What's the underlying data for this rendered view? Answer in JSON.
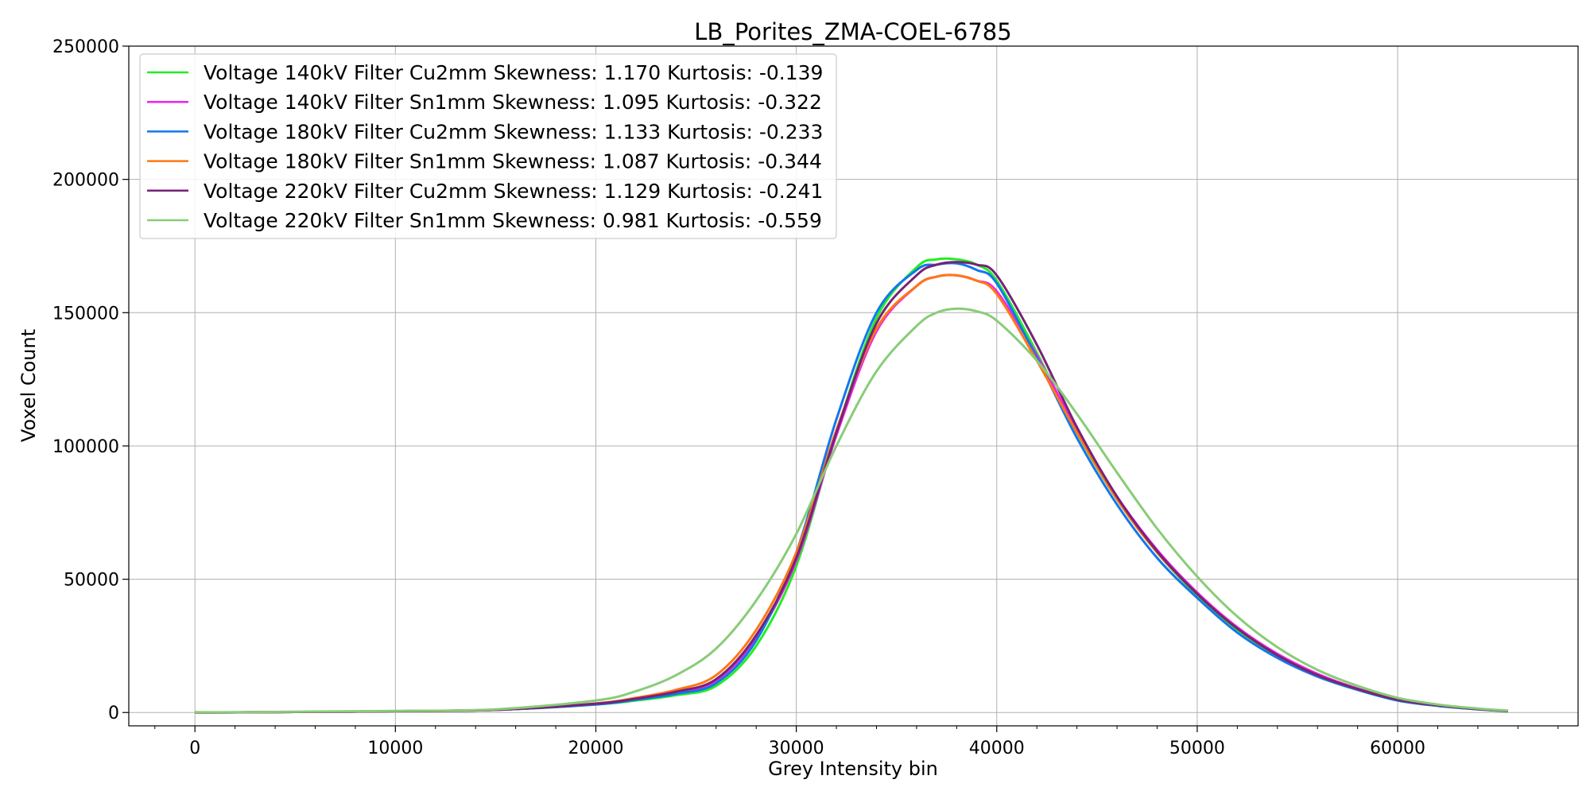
{
  "chart_data": {
    "type": "line",
    "title": "LB_Porites_ZMA-COEL-6785",
    "xlabel": "Grey Intensity bin",
    "ylabel": "Voxel Count",
    "xlim": [
      -3300,
      69000
    ],
    "ylim": [
      -5000,
      250000
    ],
    "x_ticks": [
      "0",
      "10000",
      "20000",
      "30000",
      "40000",
      "50000",
      "60000"
    ],
    "y_ticks": [
      "0",
      "50000",
      "100000",
      "150000",
      "200000",
      "250000"
    ],
    "grid": true,
    "legend_position": "top-left",
    "x": [
      0,
      5000,
      10000,
      15000,
      20000,
      22000,
      24000,
      26000,
      28000,
      30000,
      32000,
      34000,
      36000,
      37000,
      38000,
      39000,
      40000,
      42000,
      44000,
      46000,
      48000,
      50000,
      52000,
      54000,
      56000,
      58000,
      60000,
      62000,
      64000,
      65500
    ],
    "series": [
      {
        "name": "Voltage 140kV Filter Cu2mm Skewness: 1.170 Kurtosis: -0.139",
        "color": "#22ee22",
        "values": [
          0,
          200,
          500,
          1000,
          3000,
          4500,
          6500,
          10000,
          25000,
          55000,
          105000,
          148000,
          167000,
          170000,
          170000,
          168000,
          162000,
          135000,
          105000,
          80000,
          60000,
          44000,
          31000,
          21000,
          13500,
          8500,
          4500,
          2500,
          1200,
          500
        ]
      },
      {
        "name": "Voltage 140kV Filter Sn1mm Skewness: 1.095 Kurtosis: -0.322",
        "color": "#ee22ee",
        "values": [
          0,
          200,
          500,
          1000,
          3200,
          5000,
          7500,
          12000,
          28000,
          57000,
          104000,
          143000,
          160000,
          163500,
          164000,
          162000,
          158000,
          134000,
          106000,
          81000,
          61000,
          45000,
          32000,
          22000,
          14500,
          9000,
          5000,
          2800,
          1300,
          600
        ]
      },
      {
        "name": "Voltage 180kV Filter Cu2mm Skewness: 1.133 Kurtosis: -0.233",
        "color": "#1177ee",
        "values": [
          0,
          200,
          500,
          1000,
          3000,
          4800,
          7000,
          11000,
          27000,
          60000,
          110000,
          150000,
          166000,
          168000,
          168500,
          166000,
          161000,
          133000,
          103000,
          78000,
          58000,
          43000,
          30000,
          20500,
          13500,
          8500,
          4500,
          2500,
          1200,
          500
        ]
      },
      {
        "name": "Voltage 180kV Filter Sn1mm Skewness: 1.087 Kurtosis: -0.344",
        "color": "#ff7711",
        "values": [
          0,
          200,
          500,
          1000,
          3400,
          5500,
          8500,
          14000,
          31000,
          60000,
          106000,
          144000,
          160000,
          163500,
          164000,
          162000,
          157000,
          132000,
          105000,
          80000,
          60000,
          44500,
          31500,
          21500,
          14000,
          8800,
          4800,
          2700,
          1300,
          600
        ]
      },
      {
        "name": "Voltage 220kV Filter Cu2mm Skewness: 1.129 Kurtosis: -0.241",
        "color": "#772277",
        "values": [
          0,
          200,
          500,
          1000,
          3300,
          5200,
          7800,
          12500,
          29000,
          58000,
          105000,
          146000,
          164000,
          168000,
          169000,
          168000,
          164000,
          138000,
          107000,
          81000,
          60500,
          44500,
          31500,
          21500,
          14000,
          8800,
          4800,
          2700,
          1300,
          600
        ]
      },
      {
        "name": "Voltage 220kV Filter Sn1mm Skewness: 0.981 Kurtosis: -0.559",
        "color": "#88cc77",
        "values": [
          0,
          300,
          600,
          1200,
          4500,
          8000,
          14000,
          24000,
          42000,
          67000,
          100000,
          128000,
          145000,
          150000,
          151500,
          150500,
          147000,
          132000,
          112000,
          90000,
          69000,
          51000,
          36000,
          24500,
          16000,
          10000,
          5500,
          3000,
          1500,
          700
        ]
      }
    ]
  }
}
